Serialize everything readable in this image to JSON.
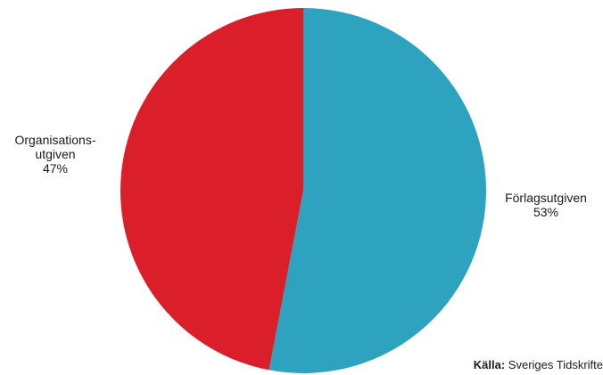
{
  "chart_data": {
    "type": "pie",
    "slices": [
      {
        "label_lines": [
          "Förlagsutgiven"
        ],
        "value": 53,
        "value_label": "53%",
        "color": "#2ea3bf"
      },
      {
        "label_lines": [
          "Organisations-",
          "utgiven"
        ],
        "value": 47,
        "value_label": "47%",
        "color": "#da1f2a"
      }
    ],
    "start_angle": "12 o'clock",
    "direction": "clockwise",
    "legend": "none",
    "source_label": "Källa:",
    "source_text": "Sveriges Tidskrifte"
  }
}
